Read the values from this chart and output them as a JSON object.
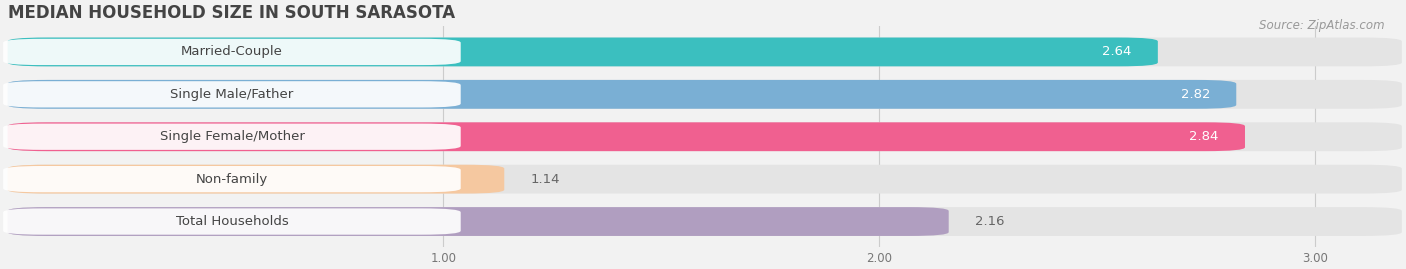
{
  "title": "MEDIAN HOUSEHOLD SIZE IN SOUTH SARASOTA",
  "source": "Source: ZipAtlas.com",
  "categories": [
    "Married-Couple",
    "Single Male/Father",
    "Single Female/Mother",
    "Non-family",
    "Total Households"
  ],
  "values": [
    2.64,
    2.82,
    2.84,
    1.14,
    2.16
  ],
  "bar_colors": [
    "#3bbfbf",
    "#7aafd4",
    "#f06090",
    "#f5c8a0",
    "#b09ec0"
  ],
  "value_inside": [
    true,
    true,
    true,
    false,
    false
  ],
  "xmin": 0.0,
  "xmax": 3.2,
  "xticks": [
    1.0,
    2.0,
    3.0
  ],
  "background_color": "#f2f2f2",
  "bar_bg_color": "#e4e4e4",
  "title_fontsize": 12,
  "label_fontsize": 9.5,
  "value_fontsize": 9.5,
  "source_fontsize": 8.5,
  "bar_height": 0.68,
  "bar_gap": 0.32
}
